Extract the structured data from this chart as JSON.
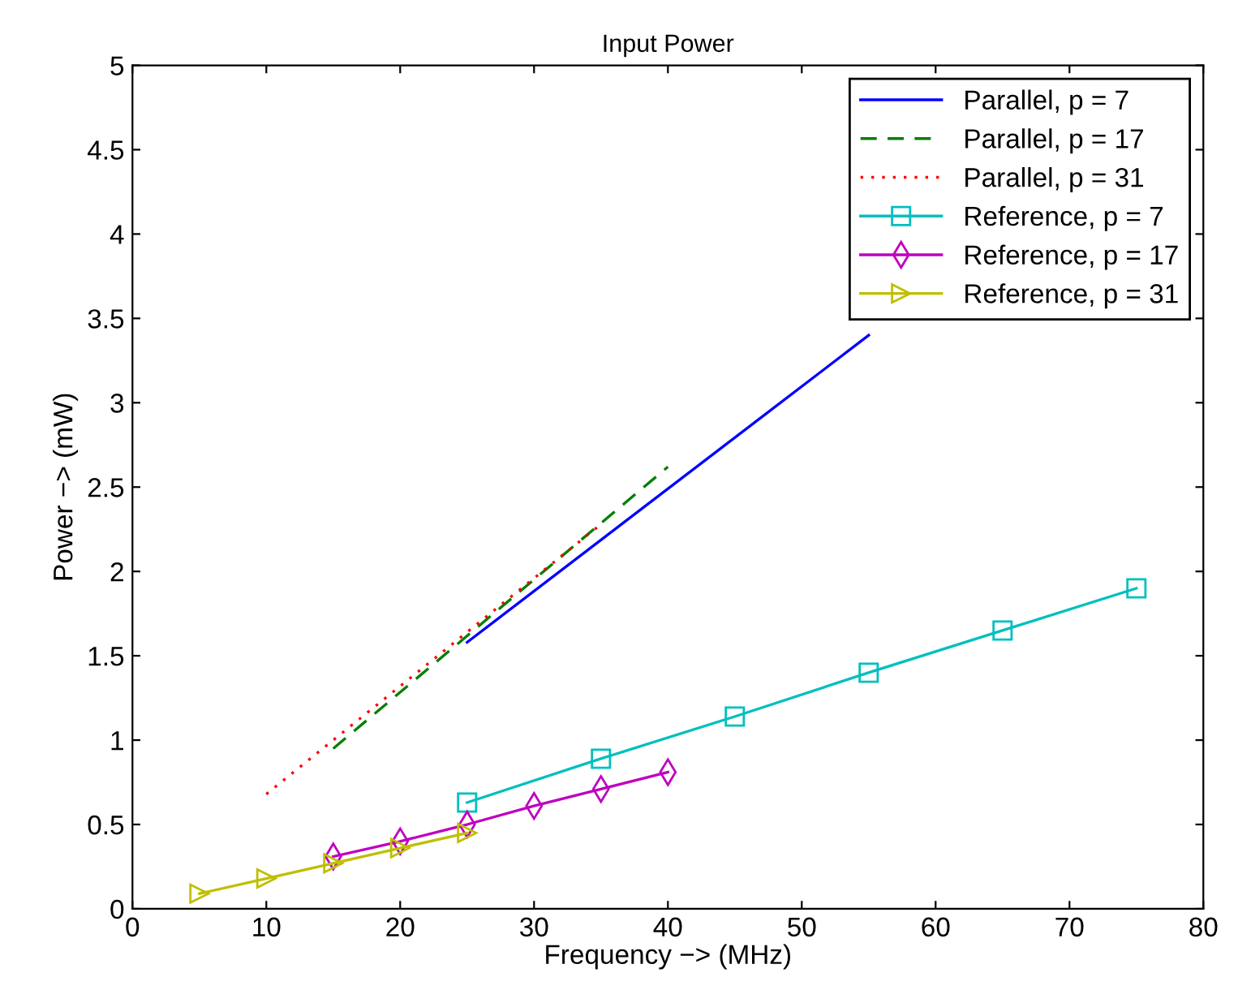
{
  "chart_data": {
    "type": "line",
    "title": "Input Power",
    "xlabel": "Frequency −> (MHz)",
    "ylabel": "Power −> (mW)",
    "xlim": [
      0,
      80
    ],
    "xticks": [
      0,
      10,
      20,
      30,
      40,
      50,
      60,
      70,
      80
    ],
    "ylim": [
      0,
      5
    ],
    "yticks": [
      0,
      0.5,
      1,
      1.5,
      2,
      2.5,
      3,
      3.5,
      4,
      4.5,
      5
    ],
    "grid": false,
    "legend": "top right",
    "series": [
      {
        "name": "Parallel, p = 7",
        "color": "#0000ff",
        "x": [
          25,
          55
        ],
        "values": [
          1.58,
          3.4
        ],
        "marker": "none",
        "line_style": "solid"
      },
      {
        "name": "Parallel, p = 17",
        "color": "#008000",
        "x": [
          15,
          40
        ],
        "values": [
          0.95,
          2.62
        ],
        "marker": "none",
        "line_style": "dashed"
      },
      {
        "name": "Parallel, p = 31",
        "color": "#ff0000",
        "x": [
          10,
          35
        ],
        "values": [
          0.68,
          2.28
        ],
        "marker": "none",
        "line_style": "dotted"
      },
      {
        "name": "Reference, p = 7",
        "color": "#00bfbf",
        "x": [
          25,
          35,
          45,
          55,
          65,
          75
        ],
        "values": [
          0.63,
          0.89,
          1.14,
          1.4,
          1.65,
          1.9
        ],
        "marker": "square",
        "line_style": "solid"
      },
      {
        "name": "Reference, p = 17",
        "color": "#bf00bf",
        "x": [
          15,
          20,
          25,
          30,
          35,
          40
        ],
        "values": [
          0.31,
          0.4,
          0.5,
          0.61,
          0.71,
          0.81
        ],
        "marker": "diamond",
        "line_style": "solid"
      },
      {
        "name": "Reference, p = 31",
        "color": "#bfbf00",
        "x": [
          5,
          10,
          15,
          20,
          25
        ],
        "values": [
          0.09,
          0.18,
          0.27,
          0.36,
          0.45
        ],
        "marker": "triangle",
        "line_style": "solid"
      }
    ]
  }
}
